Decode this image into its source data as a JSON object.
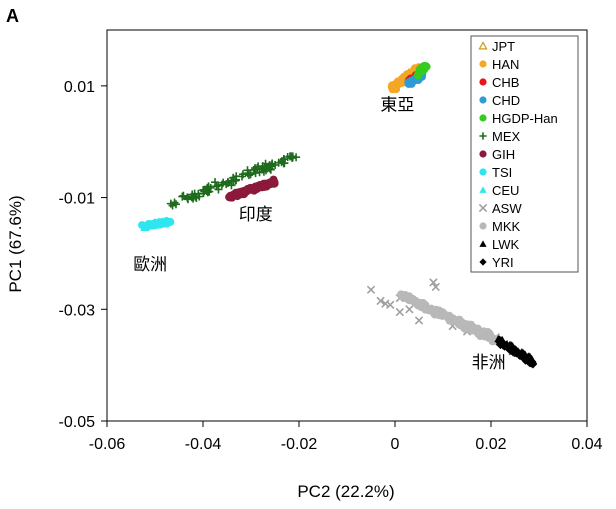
{
  "chart_data": {
    "type": "scatter",
    "panel_label": "A",
    "xlabel": "PC2 (22.2%)",
    "ylabel": "PC1 (67.6%)",
    "xlim": [
      -0.06,
      0.04
    ],
    "ylim": [
      -0.05,
      0.02
    ],
    "x_ticks": [
      -0.06,
      -0.04,
      -0.02,
      0,
      0.02,
      0.04
    ],
    "x_tick_labels": [
      "-0.06",
      "-0.04",
      "-0.02",
      "0",
      "0.02",
      "0.04"
    ],
    "y_ticks": [
      0.01,
      -0.01,
      -0.03,
      -0.05
    ],
    "y_tick_labels": [
      "0.01",
      "-0.01",
      "-0.03",
      "-0.05"
    ],
    "grid": false,
    "legend_position": "top-right",
    "series": [
      {
        "name": "JPT",
        "marker": "triangle-open",
        "color": "#c89a1c",
        "cluster": {
          "x0": 0.002,
          "y0": 0.0114,
          "x1": 0.0048,
          "y1": 0.0128,
          "spread": 0.0006,
          "count": 22
        }
      },
      {
        "name": "HAN",
        "marker": "circle",
        "color": "#f5a623",
        "cluster": {
          "x0": -0.0005,
          "y0": 0.0097,
          "x1": 0.0052,
          "y1": 0.0132,
          "spread": 0.0008,
          "count": 60
        }
      },
      {
        "name": "CHB",
        "marker": "circle",
        "color": "#e8141c",
        "cluster": {
          "x0": 0.0028,
          "y0": 0.0108,
          "x1": 0.0052,
          "y1": 0.012,
          "spread": 0.0004,
          "count": 14
        }
      },
      {
        "name": "CHD",
        "marker": "circle",
        "color": "#2f9bd6",
        "cluster": {
          "x0": 0.003,
          "y0": 0.0105,
          "x1": 0.0056,
          "y1": 0.0118,
          "spread": 0.0005,
          "count": 30
        }
      },
      {
        "name": "HGDP-Han",
        "marker": "circle",
        "color": "#33cc1f",
        "cluster": {
          "x0": 0.0045,
          "y0": 0.0118,
          "x1": 0.0065,
          "y1": 0.0138,
          "spread": 0.0005,
          "count": 24
        }
      },
      {
        "name": "MEX",
        "marker": "plus",
        "color": "#1e6b1e",
        "cluster": {
          "x0": -0.046,
          "y0": -0.011,
          "x1": -0.0205,
          "y1": -0.0025,
          "spread": 0.0012,
          "count": 95
        }
      },
      {
        "name": "GIH",
        "marker": "circle",
        "color": "#8b1a3a",
        "cluster": {
          "x0": -0.0345,
          "y0": -0.0098,
          "x1": -0.025,
          "y1": -0.0072,
          "spread": 0.0006,
          "count": 130
        }
      },
      {
        "name": "TSI",
        "marker": "circle",
        "color": "#2ee6f0",
        "cluster": {
          "x0": -0.053,
          "y0": -0.015,
          "x1": -0.047,
          "y1": -0.0145,
          "spread": 0.0005,
          "count": 45
        }
      },
      {
        "name": "CEU",
        "marker": "triangle",
        "color": "#2ee6f0",
        "cluster": {
          "x0": -0.0525,
          "y0": -0.0152,
          "x1": -0.0475,
          "y1": -0.0142,
          "spread": 0.0006,
          "count": 45
        }
      },
      {
        "name": "ASW",
        "marker": "cross",
        "color": "#a0a0a0",
        "points": [
          [
            -0.005,
            -0.0265
          ],
          [
            -0.003,
            -0.0285
          ],
          [
            -0.002,
            -0.029
          ],
          [
            0.001,
            -0.028
          ],
          [
            0.008,
            -0.0252
          ],
          [
            0.0085,
            -0.026
          ],
          [
            0.001,
            -0.0305
          ],
          [
            0.005,
            -0.032
          ],
          [
            0.01,
            -0.031
          ],
          [
            0.012,
            -0.033
          ],
          [
            0.015,
            -0.034
          ],
          [
            0.021,
            -0.035
          ],
          [
            -0.001,
            -0.0292
          ],
          [
            0.003,
            -0.03
          ]
        ]
      },
      {
        "name": "MKK",
        "marker": "circle",
        "color": "#b8b8b8",
        "cluster": {
          "x0": 0.0015,
          "y0": -0.0275,
          "x1": 0.021,
          "y1": -0.0355,
          "spread": 0.0009,
          "count": 170
        }
      },
      {
        "name": "LWK",
        "marker": "triangle",
        "color": "#000000",
        "cluster": {
          "x0": 0.0215,
          "y0": -0.0355,
          "x1": 0.0285,
          "y1": -0.039,
          "spread": 0.0007,
          "count": 70
        }
      },
      {
        "name": "YRI",
        "marker": "diamond",
        "color": "#000000",
        "cluster": {
          "x0": 0.022,
          "y0": -0.036,
          "x1": 0.029,
          "y1": -0.0398,
          "spread": 0.0006,
          "count": 80
        }
      }
    ],
    "annotations": [
      {
        "text": "東亞",
        "x": 0.0005,
        "y": 0.0056
      },
      {
        "text": "印度",
        "x": -0.029,
        "y": -0.014
      },
      {
        "text": "歐洲",
        "x": -0.051,
        "y": -0.023
      },
      {
        "text": "非洲",
        "x": 0.0195,
        "y": -0.0405
      }
    ]
  }
}
